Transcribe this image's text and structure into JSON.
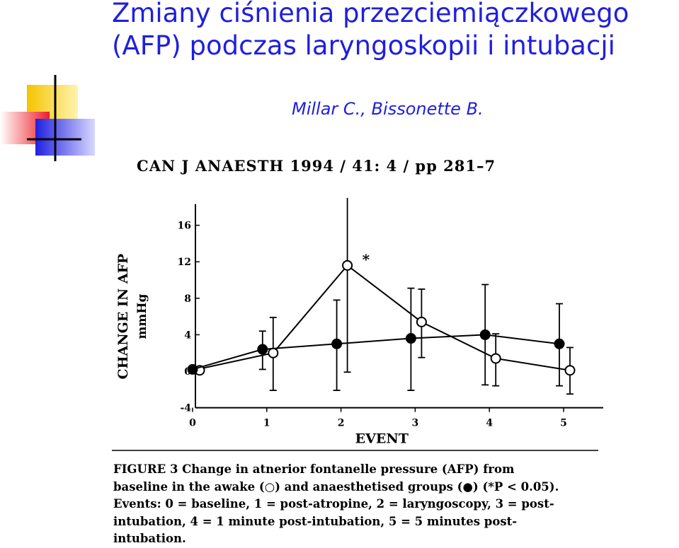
{
  "slide": {
    "title_line1": "Zmiany ciśnienia przezciemiączkowego",
    "title_line2": "(AFP) podczas laryngoskopii i intubacji",
    "author": "Millar C., Bissonette B.",
    "journal": "CAN J ANAESTH 1994 / 41: 4 / pp 281–7",
    "colors": {
      "title": "#1f1fdf",
      "deco_yellow": "#f5c400",
      "deco_red": "#ee1c25",
      "deco_blue": "#2020e0"
    }
  },
  "caption": {
    "line1": "FIGURE 3    Change in atnerior fontanelle pressure (AFP) from",
    "line2": "baseline in the awake (○) and anaesthetised groups (●) (*P < 0.05).",
    "line3": "Events: 0 = baseline, 1 = post-atropine, 2 = laryngoscopy, 3 = post-",
    "line4": "intubation, 4 = 1 minute post-intubation, 5 = 5 minutes post-",
    "line5": "intubation."
  },
  "chart_data": {
    "type": "line",
    "xlabel": "EVENT",
    "ylabel_line1": "CHANGE IN AFP",
    "ylabel_line2": "mmHg",
    "x": [
      0,
      1,
      2,
      3,
      4,
      5
    ],
    "xticks": [
      "0",
      "1",
      "2",
      "3",
      "4",
      "5"
    ],
    "yticks": [
      "16",
      "12",
      "8",
      "4",
      "0",
      "-4"
    ],
    "ylim": [
      -4,
      16
    ],
    "grid": false,
    "series": [
      {
        "marker": "open",
        "values": [
          0.1,
          2.0,
          11.6,
          5.4,
          1.4,
          0.1
        ],
        "err_low": [
          0.1,
          2.0,
          11.6,
          5.4,
          1.4,
          0.1
        ],
        "err_high": [
          0.1,
          5.9,
          19.0,
          9.0,
          4.1,
          2.6
        ],
        "err_lower_bound": [
          0.1,
          -2.1,
          -0.1,
          1.5,
          -1.6,
          -2.5
        ]
      },
      {
        "marker": "filled",
        "values": [
          0.2,
          2.4,
          3.0,
          3.6,
          4.0,
          3.0
        ],
        "err_high": [
          0.2,
          4.4,
          7.8,
          9.1,
          9.5,
          7.4
        ],
        "err_lower_bound": [
          0.2,
          0.2,
          -2.1,
          -2.1,
          -1.5,
          -1.6
        ]
      }
    ],
    "annotations": [
      {
        "text": "*",
        "x": 2,
        "y": 12.5
      }
    ]
  }
}
